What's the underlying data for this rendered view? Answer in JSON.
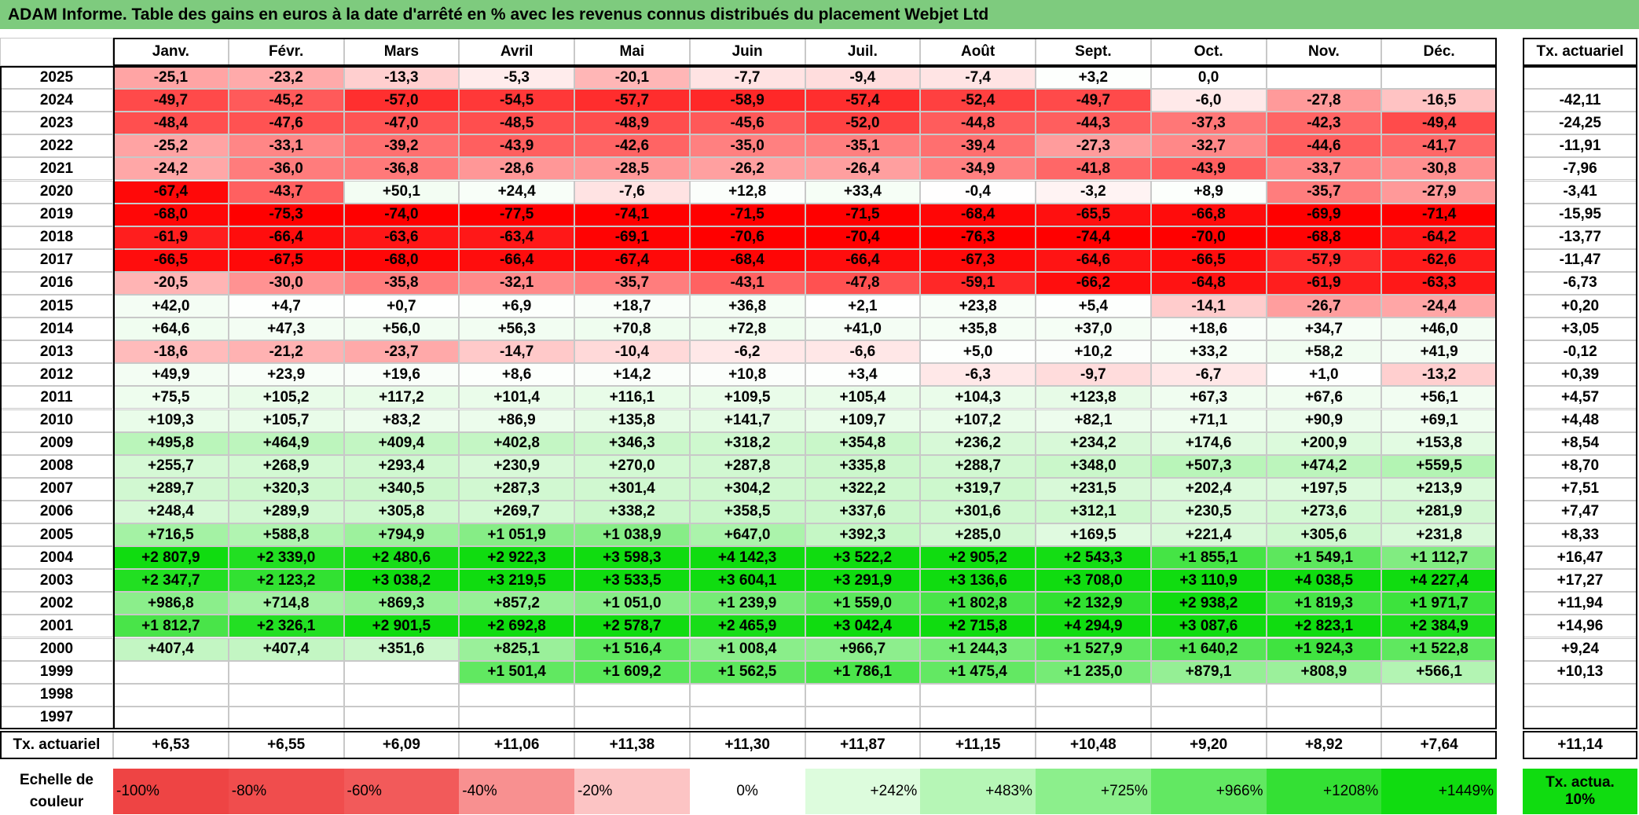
{
  "title": "ADAM Informe. Table des gains en euros à la date d'arrêté en % avec les revenus connus distribués du placement Webjet Ltd",
  "table": {
    "columns": [
      "Janv.",
      "Févr.",
      "Mars",
      "Avril",
      "Mai",
      "Juin",
      "Juil.",
      "Août",
      "Sept.",
      "Oct.",
      "Nov.",
      "Déc."
    ],
    "total_header": "Tx. actuariel",
    "rows": [
      {
        "year": "2025",
        "values": [
          "-25,1",
          "-23,2",
          "-13,3",
          "-5,3",
          "-20,1",
          "-7,7",
          "-9,4",
          "-7,4",
          "+3,2",
          "0,0",
          null,
          null
        ],
        "total": null
      },
      {
        "year": "2024",
        "values": [
          "-49,7",
          "-45,2",
          "-57,0",
          "-54,5",
          "-57,7",
          "-58,9",
          "-57,4",
          "-52,4",
          "-49,7",
          "-6,0",
          "-27,8",
          "-16,5"
        ],
        "total": "-42,11"
      },
      {
        "year": "2023",
        "values": [
          "-48,4",
          "-47,6",
          "-47,0",
          "-48,5",
          "-48,9",
          "-45,6",
          "-52,0",
          "-44,8",
          "-44,3",
          "-37,3",
          "-42,3",
          "-49,4"
        ],
        "total": "-24,25"
      },
      {
        "year": "2022",
        "values": [
          "-25,2",
          "-33,1",
          "-39,2",
          "-43,9",
          "-42,6",
          "-35,0",
          "-35,1",
          "-39,4",
          "-27,3",
          "-32,7",
          "-44,6",
          "-41,7"
        ],
        "total": "-11,91"
      },
      {
        "year": "2021",
        "values": [
          "-24,2",
          "-36,0",
          "-36,8",
          "-28,6",
          "-28,5",
          "-26,2",
          "-26,4",
          "-34,9",
          "-41,8",
          "-43,9",
          "-33,7",
          "-30,8"
        ],
        "total": "-7,96"
      },
      {
        "year": "2020",
        "values": [
          "-67,4",
          "-43,7",
          "+50,1",
          "+24,4",
          "-7,6",
          "+12,8",
          "+33,4",
          "-0,4",
          "-3,2",
          "+8,9",
          "-35,7",
          "-27,9"
        ],
        "total": "-3,41"
      },
      {
        "year": "2019",
        "values": [
          "-68,0",
          "-75,3",
          "-74,0",
          "-77,5",
          "-74,1",
          "-71,5",
          "-71,5",
          "-68,4",
          "-65,5",
          "-66,8",
          "-69,9",
          "-71,4"
        ],
        "total": "-15,95"
      },
      {
        "year": "2018",
        "values": [
          "-61,9",
          "-66,4",
          "-63,6",
          "-63,4",
          "-69,1",
          "-70,6",
          "-70,4",
          "-76,3",
          "-74,4",
          "-70,0",
          "-68,8",
          "-64,2"
        ],
        "total": "-13,77"
      },
      {
        "year": "2017",
        "values": [
          "-66,5",
          "-67,5",
          "-68,0",
          "-66,4",
          "-67,4",
          "-68,4",
          "-66,4",
          "-67,3",
          "-64,6",
          "-66,5",
          "-57,9",
          "-62,6"
        ],
        "total": "-11,47"
      },
      {
        "year": "2016",
        "values": [
          "-20,5",
          "-30,0",
          "-35,8",
          "-32,1",
          "-35,7",
          "-43,1",
          "-47,8",
          "-59,1",
          "-66,2",
          "-64,8",
          "-61,9",
          "-63,3"
        ],
        "total": "-6,73"
      },
      {
        "year": "2015",
        "values": [
          "+42,0",
          "+4,7",
          "+0,7",
          "+6,9",
          "+18,7",
          "+36,8",
          "+2,1",
          "+23,8",
          "+5,4",
          "-14,1",
          "-26,7",
          "-24,4"
        ],
        "total": "+0,20"
      },
      {
        "year": "2014",
        "values": [
          "+64,6",
          "+47,3",
          "+56,0",
          "+56,3",
          "+70,8",
          "+72,8",
          "+41,0",
          "+35,8",
          "+37,0",
          "+18,6",
          "+34,7",
          "+46,0"
        ],
        "total": "+3,05"
      },
      {
        "year": "2013",
        "values": [
          "-18,6",
          "-21,2",
          "-23,7",
          "-14,7",
          "-10,4",
          "-6,2",
          "-6,6",
          "+5,0",
          "+10,2",
          "+33,2",
          "+58,2",
          "+41,9"
        ],
        "total": "-0,12"
      },
      {
        "year": "2012",
        "values": [
          "+49,9",
          "+23,9",
          "+19,6",
          "+8,6",
          "+14,2",
          "+10,8",
          "+3,4",
          "-6,3",
          "-9,7",
          "-6,7",
          "+1,0",
          "-13,2"
        ],
        "total": "+0,39"
      },
      {
        "year": "2011",
        "values": [
          "+75,5",
          "+105,2",
          "+117,2",
          "+101,4",
          "+116,1",
          "+109,5",
          "+105,4",
          "+104,3",
          "+123,8",
          "+67,3",
          "+67,6",
          "+56,1"
        ],
        "total": "+4,57"
      },
      {
        "year": "2010",
        "values": [
          "+109,3",
          "+105,7",
          "+83,2",
          "+86,9",
          "+135,8",
          "+141,7",
          "+109,7",
          "+107,2",
          "+82,1",
          "+71,1",
          "+90,9",
          "+69,1"
        ],
        "total": "+4,48"
      },
      {
        "year": "2009",
        "values": [
          "+495,8",
          "+464,9",
          "+409,4",
          "+402,8",
          "+346,3",
          "+318,2",
          "+354,8",
          "+236,2",
          "+234,2",
          "+174,6",
          "+200,9",
          "+153,8"
        ],
        "total": "+8,54"
      },
      {
        "year": "2008",
        "values": [
          "+255,7",
          "+268,9",
          "+293,4",
          "+230,9",
          "+270,0",
          "+287,8",
          "+335,8",
          "+288,7",
          "+348,0",
          "+507,3",
          "+474,2",
          "+559,5"
        ],
        "total": "+8,70"
      },
      {
        "year": "2007",
        "values": [
          "+289,7",
          "+320,3",
          "+340,5",
          "+287,3",
          "+301,4",
          "+304,2",
          "+322,2",
          "+319,7",
          "+231,5",
          "+202,4",
          "+197,5",
          "+213,9"
        ],
        "total": "+7,51"
      },
      {
        "year": "2006",
        "values": [
          "+248,4",
          "+289,9",
          "+305,8",
          "+269,7",
          "+338,2",
          "+358,5",
          "+337,6",
          "+301,6",
          "+312,1",
          "+230,5",
          "+273,6",
          "+281,9"
        ],
        "total": "+7,47"
      },
      {
        "year": "2005",
        "values": [
          "+716,5",
          "+588,8",
          "+794,9",
          "+1 051,9",
          "+1 038,9",
          "+647,0",
          "+392,3",
          "+285,0",
          "+169,5",
          "+221,4",
          "+305,6",
          "+231,8"
        ],
        "total": "+8,33"
      },
      {
        "year": "2004",
        "values": [
          "+2 807,9",
          "+2 339,0",
          "+2 480,6",
          "+2 922,3",
          "+3 598,3",
          "+4 142,3",
          "+3 522,2",
          "+2 905,2",
          "+2 543,3",
          "+1 855,1",
          "+1 549,1",
          "+1 112,7"
        ],
        "total": "+16,47"
      },
      {
        "year": "2003",
        "values": [
          "+2 347,7",
          "+2 123,2",
          "+3 038,2",
          "+3 219,5",
          "+3 533,5",
          "+3 604,1",
          "+3 291,9",
          "+3 136,6",
          "+3 708,0",
          "+3 110,9",
          "+4 038,5",
          "+4 227,4"
        ],
        "total": "+17,27"
      },
      {
        "year": "2002",
        "values": [
          "+986,8",
          "+714,8",
          "+869,3",
          "+857,2",
          "+1 051,0",
          "+1 239,9",
          "+1 559,0",
          "+1 802,8",
          "+2 132,9",
          "+2 938,2",
          "+1 819,3",
          "+1 971,7"
        ],
        "total": "+11,94"
      },
      {
        "year": "2001",
        "values": [
          "+1 812,7",
          "+2 326,1",
          "+2 901,5",
          "+2 692,8",
          "+2 578,7",
          "+2 465,9",
          "+3 042,4",
          "+2 715,8",
          "+4 294,9",
          "+3 087,6",
          "+2 823,1",
          "+2 384,9"
        ],
        "total": "+14,96"
      },
      {
        "year": "2000",
        "values": [
          "+407,4",
          "+407,4",
          "+351,6",
          "+825,1",
          "+1 516,4",
          "+1 008,4",
          "+966,7",
          "+1 244,3",
          "+1 527,9",
          "+1 640,2",
          "+1 924,3",
          "+1 522,8"
        ],
        "total": "+9,24"
      },
      {
        "year": "1999",
        "values": [
          null,
          null,
          null,
          "+1 501,4",
          "+1 609,2",
          "+1 562,5",
          "+1 786,1",
          "+1 475,4",
          "+1 235,0",
          "+879,1",
          "+808,9",
          "+566,1"
        ],
        "total": "+10,13"
      },
      {
        "year": "1998",
        "values": [
          null,
          null,
          null,
          null,
          null,
          null,
          null,
          null,
          null,
          null,
          null,
          null
        ],
        "total": null
      },
      {
        "year": "1997",
        "values": [
          null,
          null,
          null,
          null,
          null,
          null,
          null,
          null,
          null,
          null,
          null,
          null
        ],
        "total": null
      }
    ],
    "footer": {
      "label": "Tx. actuariel",
      "values": [
        "+6,53",
        "+6,55",
        "+6,09",
        "+11,06",
        "+11,38",
        "+11,30",
        "+11,87",
        "+11,15",
        "+10,48",
        "+9,20",
        "+8,92",
        "+7,64"
      ],
      "total": "+11,14"
    }
  },
  "legend": {
    "label": "Echelle de couleur",
    "steps": [
      {
        "label": "-100%",
        "color": "#ee4444"
      },
      {
        "label": "-80%",
        "color": "#f04d4d"
      },
      {
        "label": "-60%",
        "color": "#f25a5a"
      },
      {
        "label": "-40%",
        "color": "#f89090"
      },
      {
        "label": "-20%",
        "color": "#fcc4c4"
      },
      {
        "label": "0%",
        "color": "#ffffff"
      },
      {
        "label": "+242%",
        "color": "#ddfcdd"
      },
      {
        "label": "+483%",
        "color": "#b6f6b6"
      },
      {
        "label": "+725%",
        "color": "#8cef8c"
      },
      {
        "label": "+966%",
        "color": "#62e862"
      },
      {
        "label": "+1208%",
        "color": "#34e034"
      },
      {
        "label": "+1449%",
        "color": "#10dc10"
      }
    ],
    "note": "Tx. actua. 10%",
    "note_color": "#10dc10"
  }
}
